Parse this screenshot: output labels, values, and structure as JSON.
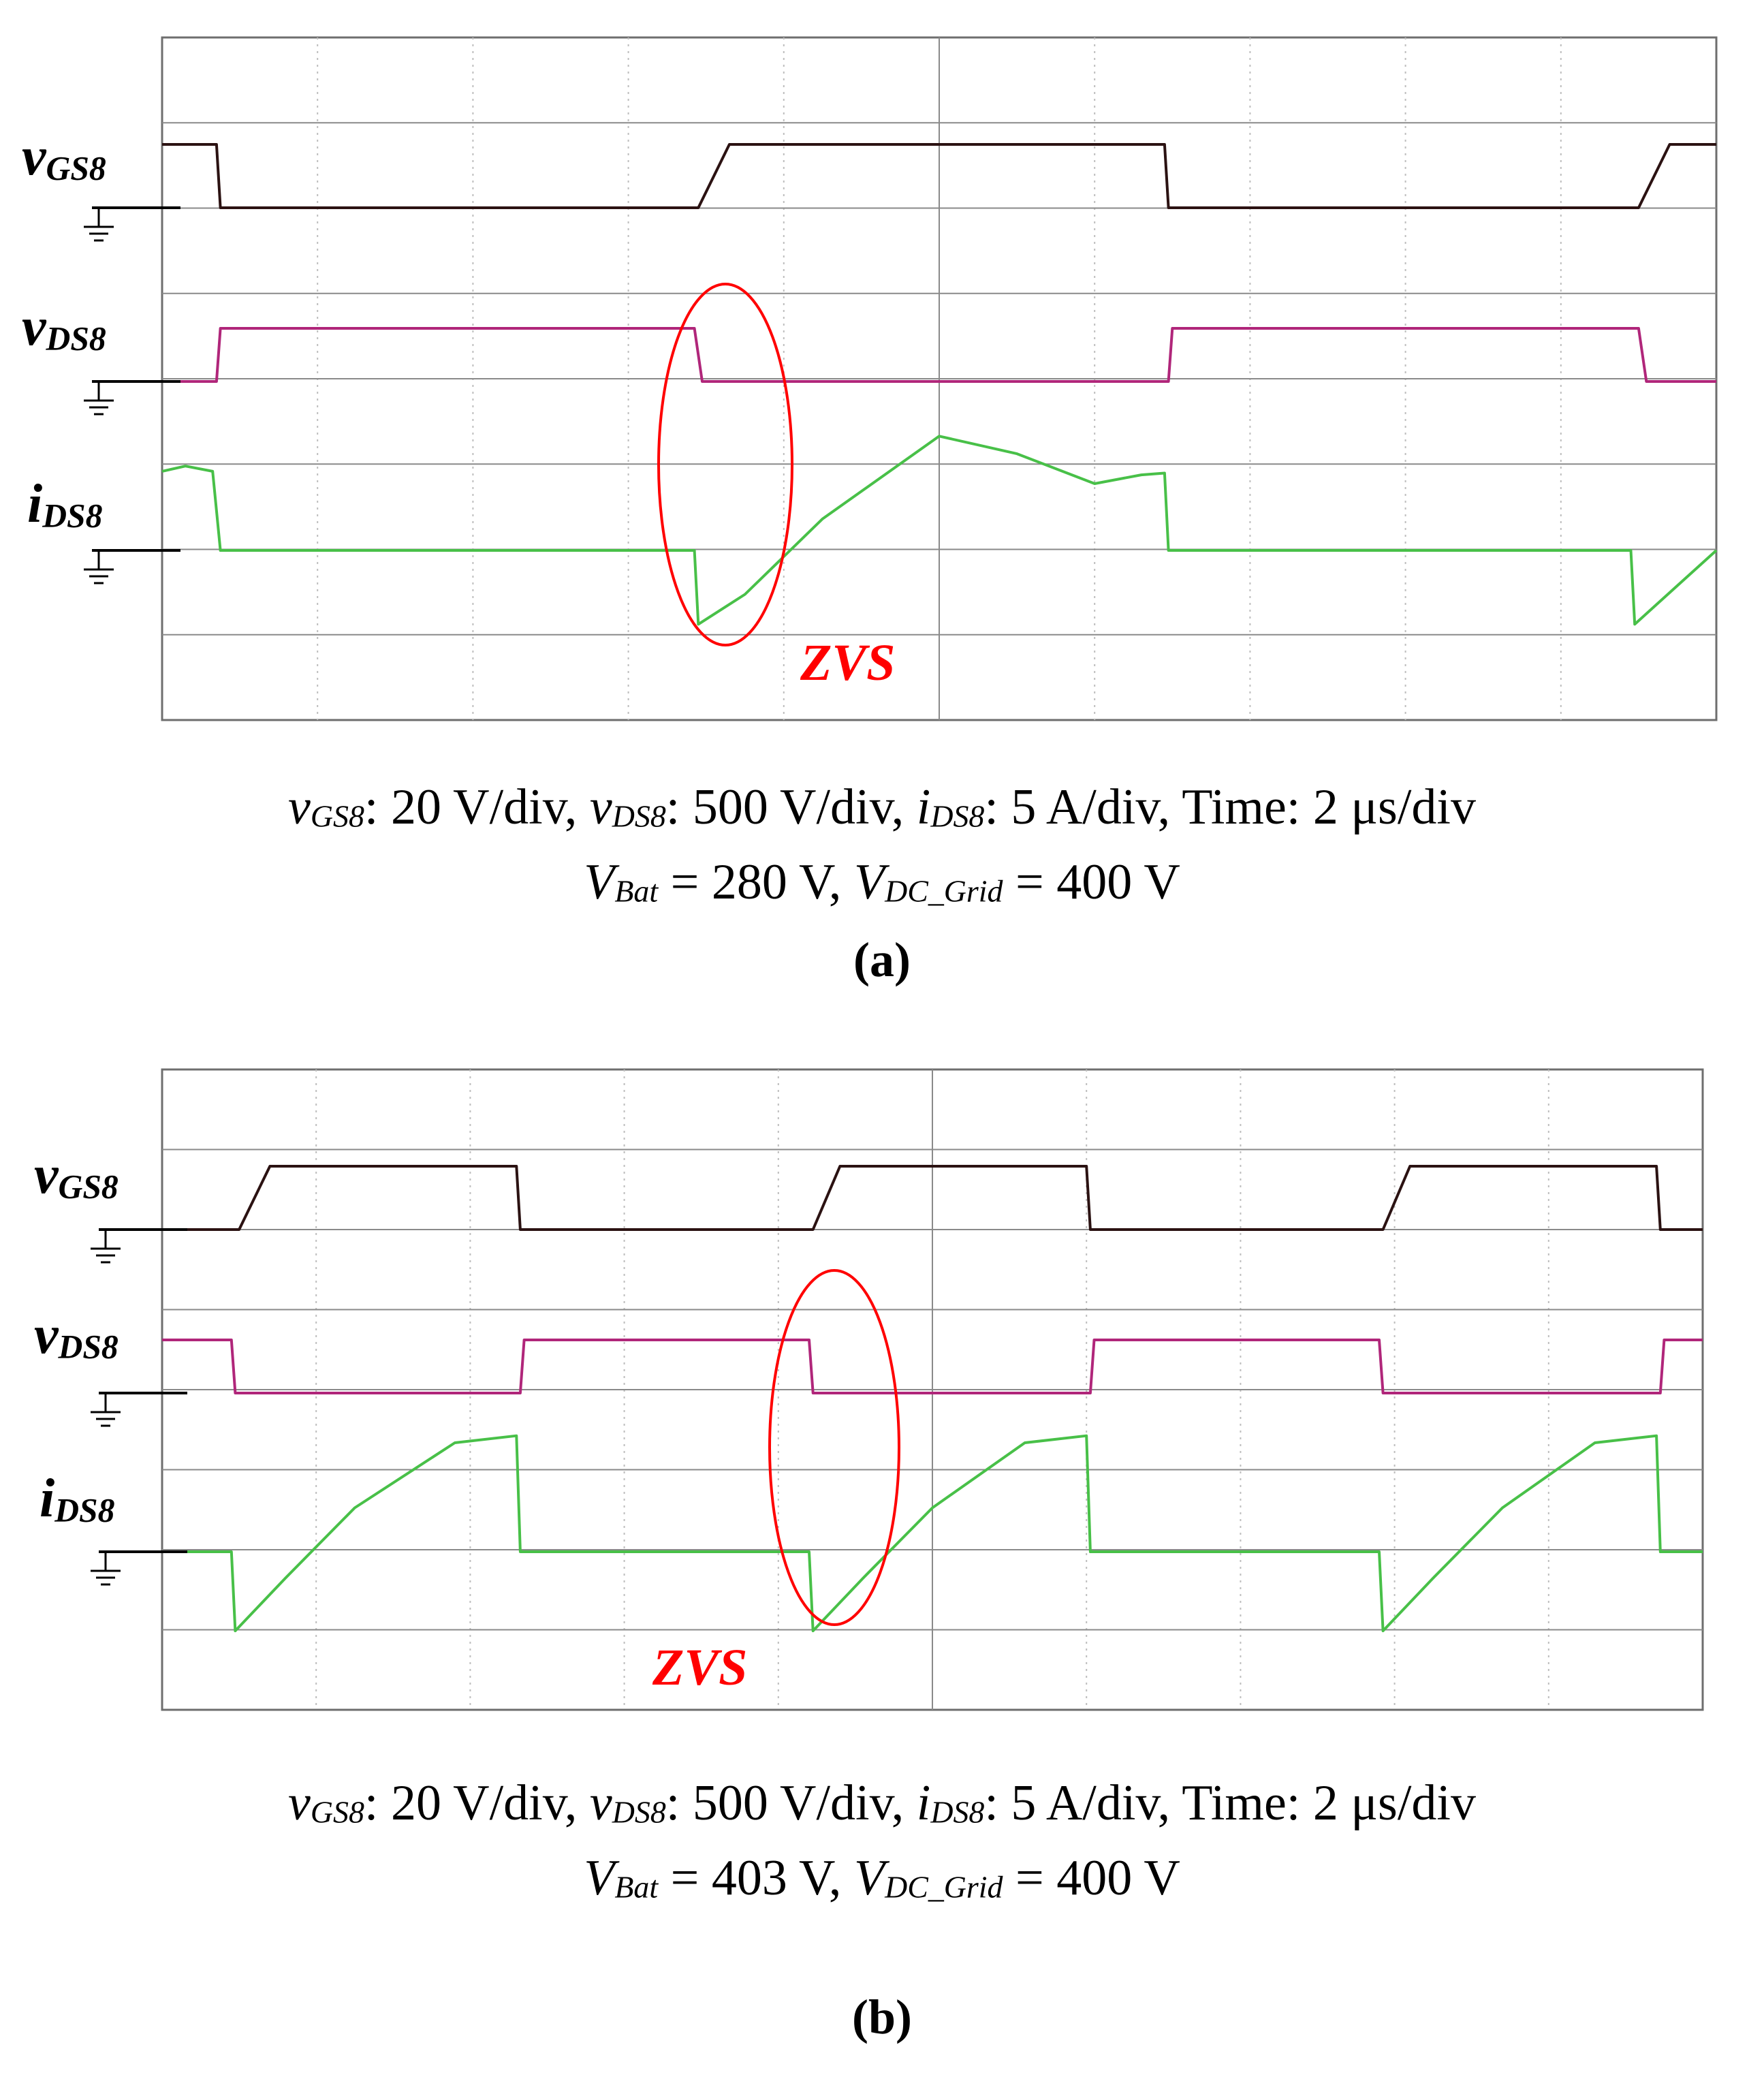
{
  "colors": {
    "vgs": "#2b1212",
    "vds": "#b0267a",
    "ids": "#48c048",
    "zvs": "#ff0000",
    "grid_major": "#8a8a8a",
    "grid_minor": "#bdbdbd",
    "frame": "#6e6e6e"
  },
  "channel_labels": {
    "vgs": {
      "main": "v",
      "sub": "GS8"
    },
    "vds": {
      "main": "v",
      "sub": "DS8"
    },
    "ids": {
      "main": "i",
      "sub": "DS8"
    }
  },
  "panels": [
    {
      "letter": "(a)",
      "annotation": "ZVS",
      "caption_line1": [
        {
          "v": "v",
          "s": "GS8",
          "t": ": 20 V/div, "
        },
        {
          "v": "v",
          "s": "DS8",
          "t": ": 500 V/div, "
        },
        {
          "v": "i",
          "s": "DS8",
          "t": ": 5 A/div, Time: 2 μs/div"
        }
      ],
      "caption_line2": [
        {
          "v": "V",
          "s": "Bat",
          "t": " = 280 V, "
        },
        {
          "v": "V",
          "s": "DC_Grid",
          "t": " = 400 V"
        }
      ]
    },
    {
      "letter": "(b)",
      "annotation": "ZVS",
      "caption_line1": [
        {
          "v": "v",
          "s": "GS8",
          "t": ": 20 V/div, "
        },
        {
          "v": "v",
          "s": "DS8",
          "t": ": 500 V/div, "
        },
        {
          "v": "i",
          "s": "DS8",
          "t": ": 5 A/div, Time: 2 μs/div"
        }
      ],
      "caption_line2": [
        {
          "v": "V",
          "s": "Bat",
          "t": " = 403 V, "
        },
        {
          "v": "V",
          "s": "DC_Grid",
          "t": " = 400 V"
        }
      ]
    }
  ],
  "chart_data": [
    {
      "type": "line",
      "time_div": "2 μs/div",
      "x_divisions": 10,
      "x_range_us": [
        0,
        20
      ],
      "series": [
        {
          "name": "vGS8",
          "scale": "20 V/div",
          "x": [
            0,
            0.7,
            0.75,
            6.8,
            6.9,
            7.3,
            12.9,
            12.95,
            18.9,
            19.0,
            19.4,
            20.0
          ],
          "y": [
            20,
            20,
            0,
            0,
            0,
            20,
            20,
            0,
            0,
            0,
            20,
            20
          ]
        },
        {
          "name": "vDS8",
          "scale": "500 V/div",
          "x": [
            0,
            0.7,
            0.75,
            6.85,
            6.95,
            12.95,
            13.0,
            19.0,
            19.1,
            20.0
          ],
          "y": [
            0,
            0,
            400,
            400,
            0,
            0,
            400,
            400,
            0,
            0
          ]
        },
        {
          "name": "iDS8",
          "scale": "5 A/div",
          "x": [
            0,
            0.3,
            0.65,
            0.75,
            6.85,
            6.9,
            7.5,
            8.5,
            10.0,
            11.0,
            12.0,
            12.6,
            12.9,
            12.95,
            18.9,
            18.95,
            19.5,
            20.0
          ],
          "y": [
            4.5,
            4.8,
            4.5,
            0,
            0,
            -4.2,
            -2.5,
            1.8,
            6.5,
            5.5,
            3.8,
            4.3,
            4.4,
            0,
            0,
            -4.2,
            -2.0,
            0
          ]
        }
      ]
    },
    {
      "type": "line",
      "time_div": "2 μs/div",
      "x_divisions": 10,
      "x_range_us": [
        0,
        20
      ],
      "series": [
        {
          "name": "vGS8",
          "scale": "20 V/div",
          "x": [
            0,
            0.9,
            1.0,
            1.4,
            4.6,
            4.65,
            8.3,
            8.45,
            8.8,
            12.0,
            12.05,
            15.7,
            15.85,
            16.2,
            19.4,
            19.45,
            20.0
          ],
          "y": [
            0,
            0,
            0,
            20,
            20,
            0,
            0,
            0,
            20,
            20,
            0,
            0,
            0,
            20,
            20,
            0,
            0
          ]
        },
        {
          "name": "vDS8",
          "scale": "500 V/div",
          "x": [
            0,
            0.9,
            0.95,
            4.65,
            4.7,
            8.4,
            8.45,
            12.05,
            12.1,
            15.8,
            15.85,
            19.45,
            19.5,
            20.0
          ],
          "y": [
            400,
            400,
            0,
            0,
            400,
            400,
            0,
            0,
            400,
            400,
            0,
            0,
            400,
            400
          ]
        },
        {
          "name": "iDS8",
          "scale": "5 A/div",
          "x": [
            0,
            0.9,
            0.95,
            1.6,
            2.5,
            3.8,
            4.6,
            4.65,
            8.4,
            8.45,
            9.1,
            10.0,
            11.2,
            12.0,
            12.05,
            15.8,
            15.85,
            16.5,
            17.4,
            18.6,
            19.4,
            19.45,
            20.0
          ],
          "y": [
            0,
            0,
            -4.5,
            -1.5,
            2.5,
            6.2,
            6.6,
            0,
            0,
            -4.5,
            -1.5,
            2.5,
            6.2,
            6.6,
            0,
            0,
            -4.5,
            -1.5,
            2.5,
            6.2,
            6.6,
            0,
            0
          ]
        }
      ]
    }
  ]
}
